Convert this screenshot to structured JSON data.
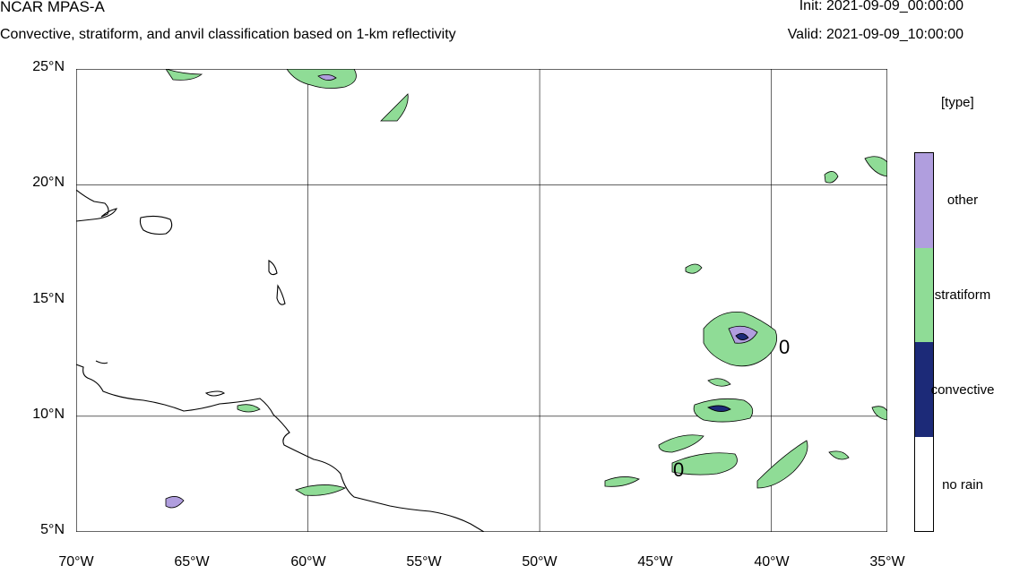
{
  "header": {
    "title": "NCAR MPAS-A",
    "subtitle": "Convective, stratiform, and anvil classification based on 1-km reflectivity",
    "init": "Init: 2021-09-09_00:00:00",
    "valid": "Valid: 2021-09-09_10:00:00"
  },
  "map": {
    "lat_labels": [
      "25°N",
      "20°N",
      "15°N",
      "10°N",
      "5°N"
    ],
    "lon_labels": [
      "70°W",
      "65°W",
      "60°W",
      "55°W",
      "50°W",
      "45°W",
      "40°W",
      "35°W"
    ],
    "extent": {
      "lon_min": -70,
      "lon_max": -35,
      "lat_min": 5,
      "lat_max": 25
    },
    "contour_labels": [
      "0",
      "0"
    ]
  },
  "legend": {
    "units": "[type]",
    "classes": [
      {
        "label": "other",
        "color": "#b09ede"
      },
      {
        "label": "stratiform",
        "color": "#8fdc96"
      },
      {
        "label": "convective",
        "color": "#1c2a78"
      },
      {
        "label": "no rain",
        "color": "#ffffff"
      }
    ]
  }
}
